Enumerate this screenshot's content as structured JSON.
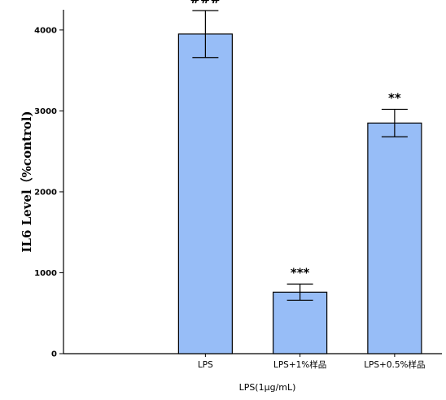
{
  "chart_data": {
    "type": "bar",
    "categories": [
      "",
      "LPS",
      "LPS+1%样品",
      "LPS+0.5%样品"
    ],
    "values": [
      null,
      3950,
      760,
      2850
    ],
    "errors": [
      null,
      290,
      100,
      170
    ],
    "significance": [
      "",
      "###",
      "***",
      "**"
    ],
    "title": "",
    "xlabel": "LPS(1μg/mL)",
    "ylabel": "IL6 Level（%control)",
    "ylim": [
      0,
      4250
    ],
    "yticks": [
      0,
      1000,
      2000,
      3000,
      4000
    ],
    "bar_color": "#97bdf7",
    "bar_edge_color": "#000000",
    "grid": false,
    "legend": "none"
  }
}
